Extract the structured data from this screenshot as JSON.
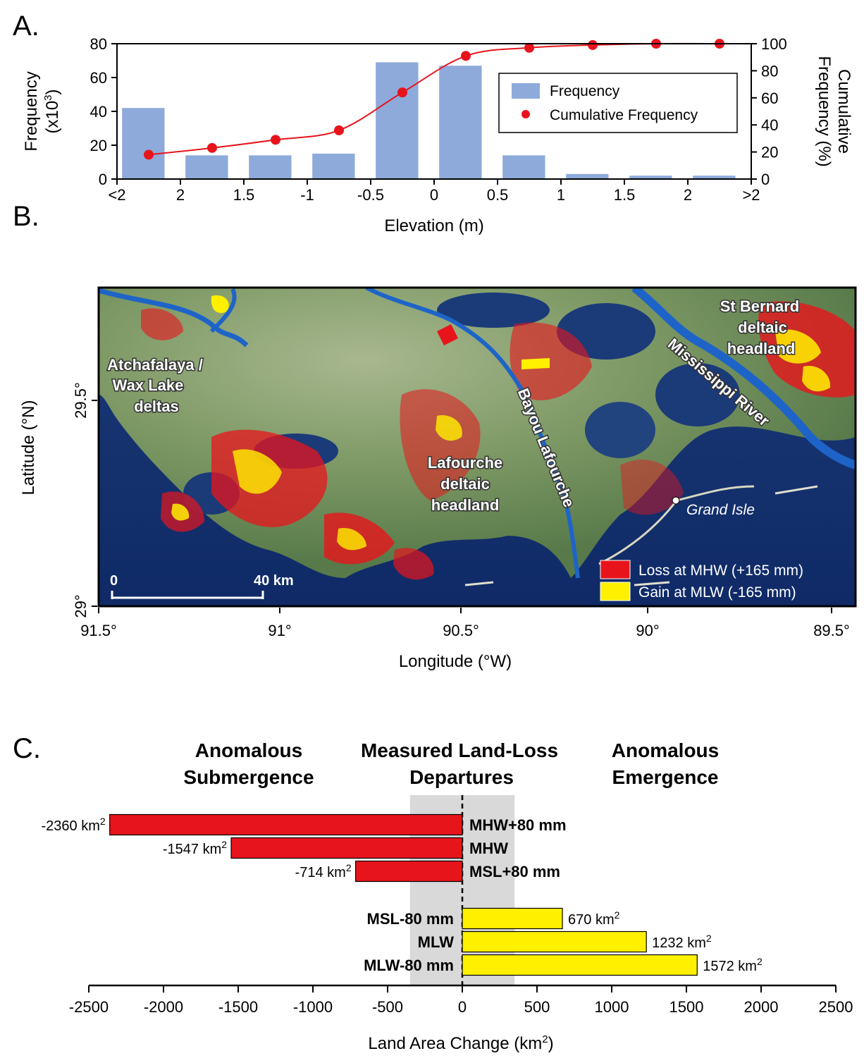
{
  "colors": {
    "bar_frequency": "#8eaadb",
    "cumulative": "#e8141c",
    "loss": "#e8141c",
    "gain": "#fff000",
    "band": "#d9d9d9",
    "water": "#12306a",
    "land": "#6f8f5a",
    "river": "#1e64c8"
  },
  "panel_a": {
    "letter": "A.",
    "chart_data": {
      "type": "bar",
      "categories": [
        "<2",
        "-2 to -1.5",
        "-1.5 to -1",
        "-1 to -0.5",
        "-0.5 to 0",
        "0 to 0.5",
        "0.5 to 1",
        "1 to 1.5",
        "1.5 to 2",
        ">2"
      ],
      "series": [
        {
          "name": "Frequency",
          "axis": "left",
          "values": [
            42,
            14,
            14,
            15,
            69,
            67,
            14,
            3,
            2,
            2
          ]
        },
        {
          "name": "Cumulative Frequency",
          "axis": "right",
          "type": "line",
          "x": [
            -2.25,
            -1.75,
            -1.25,
            -0.75,
            -0.25,
            0.25,
            0.75,
            1.25,
            1.75,
            2.25
          ],
          "values": [
            18,
            23,
            29,
            36,
            64,
            91,
            97,
            99,
            100,
            100
          ]
        }
      ],
      "x_tick_labels": [
        "<2",
        "2",
        "1.5",
        "-1",
        "-0.5",
        "0",
        "0.5",
        "1",
        "1.5",
        "2",
        ">2"
      ],
      "xlim": [
        -2.5,
        2.5
      ],
      "ylim": [
        0,
        80
      ],
      "y_ticks": [
        0,
        20,
        40,
        60,
        80
      ],
      "y2lim": [
        0,
        100
      ],
      "y2_ticks": [
        0,
        20,
        40,
        60,
        80,
        100
      ],
      "xlabel": "Elevation (m)",
      "ylabel_line1": "Frequency",
      "ylabel_line2": "(x10",
      "ylabel_sup": "3",
      "ylabel_line2_end": ")",
      "y2label_line1": "Cumulative",
      "y2label_line2": "Frequency (%)",
      "legend_position": "right",
      "legend": [
        "Frequency",
        "Cumulative Frequency"
      ]
    }
  },
  "panel_b": {
    "letter": "B.",
    "xlabel": "Longitude (°W)",
    "ylabel": "Latitude (°N)",
    "x_ticks": [
      "91.5°",
      "91°",
      "90.5°",
      "90°",
      "89.5°"
    ],
    "y_ticks": [
      "29.5°",
      "29°"
    ],
    "labels": {
      "atchafalaya_1": "Atchafalaya /",
      "atchafalaya_2": "Wax Lake",
      "atchafalaya_3": "deltas",
      "lafourche_1": "Lafourche",
      "lafourche_2": "deltaic",
      "lafourche_3": "headland",
      "stbernard_1": "St Bernard",
      "stbernard_2": "deltaic",
      "stbernard_3": "headland",
      "bayou": "Bayou Lafourche",
      "mississippi": "Mississippi River",
      "grand_isle": "Grand Isle"
    },
    "scale_start": "0",
    "scale_end": "40 km",
    "legend": [
      {
        "label": "Loss at MHW (+165 mm)",
        "color": "#e8141c"
      },
      {
        "label": "Gain at MLW (-165 mm)",
        "color": "#fff000"
      }
    ]
  },
  "panel_c": {
    "letter": "C.",
    "headings": {
      "left_1": "Anomalous",
      "left_2": "Submergence",
      "center_1": "Measured Land-Loss",
      "center_2": "Departures",
      "right_1": "Anomalous",
      "right_2": "Emergence"
    },
    "chart_data": {
      "type": "bar",
      "orientation": "horizontal",
      "categories": [
        "MHW+80 mm",
        "MHW",
        "MSL+80 mm",
        "MSL-80 mm",
        "MLW",
        "MLW-80 mm"
      ],
      "values": [
        -2360,
        -1547,
        -714,
        670,
        1232,
        1572
      ],
      "value_labels": [
        "-2360 km",
        "-1547 km",
        "-714 km",
        "670 km",
        "1232 km",
        "1572 km"
      ],
      "value_label_sup": "2",
      "xlim": [
        -2500,
        2500
      ],
      "x_ticks": [
        -2500,
        -2000,
        -1500,
        -1000,
        -500,
        0,
        500,
        1000,
        1500,
        2000,
        2500
      ],
      "shaded_band": [
        -350,
        350
      ],
      "xlabel": "Land Area Change (km",
      "xlabel_sup": "2",
      "xlabel_end": ")"
    }
  }
}
